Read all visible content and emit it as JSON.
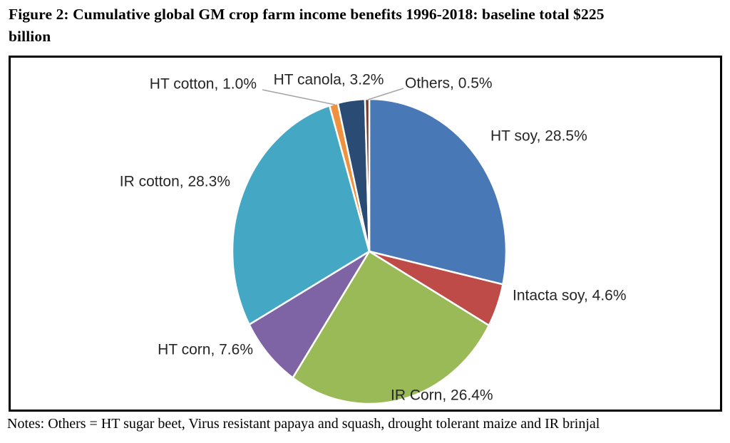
{
  "title": {
    "line1": "Figure 2: Cumulative global GM crop farm income benefits 1996-2018: baseline total $225",
    "line2": "billion",
    "full": "Figure 2: Cumulative global GM crop farm income benefits 1996-2018: baseline total $225 billion"
  },
  "notes": "Notes: Others = HT sugar beet, Virus resistant papaya and squash, drought tolerant maize and IR brinjal",
  "chart_data": {
    "type": "pie",
    "title": "Cumulative global GM crop farm income benefits 1996-2018",
    "baseline_total": "$225 billion",
    "start_angle_deg": 0,
    "direction": "clockwise",
    "label_format": "{name}, {value}%",
    "legend_position": "none",
    "slice_border_color": "#ffffff",
    "leader_line_color": "#a6a6a6",
    "slices": [
      {
        "name": "HT soy",
        "value": 28.5,
        "color": "#4878B5"
      },
      {
        "name": "Intacta soy",
        "value": 4.6,
        "color": "#BE4B48"
      },
      {
        "name": "IR Corn",
        "value": 26.4,
        "color": "#9ABA58"
      },
      {
        "name": "HT corn",
        "value": 7.6,
        "color": "#7E63A5"
      },
      {
        "name": "IR cotton",
        "value": 28.3,
        "color": "#44A8C4"
      },
      {
        "name": "HT cotton",
        "value": 1.0,
        "color": "#F0913F"
      },
      {
        "name": "HT canola",
        "value": 3.2,
        "color": "#2A4B74"
      },
      {
        "name": "Others",
        "value": 0.5,
        "color": "#73392F"
      }
    ]
  }
}
